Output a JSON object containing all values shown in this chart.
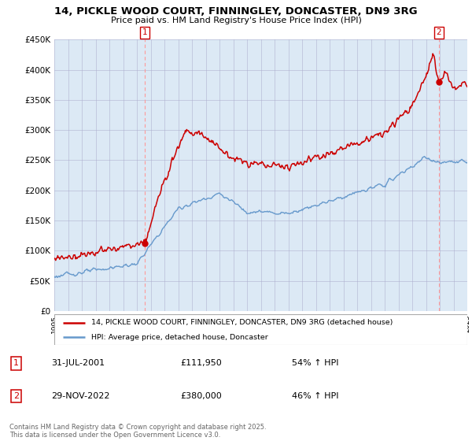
{
  "title": "14, PICKLE WOOD COURT, FINNINGLEY, DONCASTER, DN9 3RG",
  "subtitle": "Price paid vs. HM Land Registry's House Price Index (HPI)",
  "red_label": "14, PICKLE WOOD COURT, FINNINGLEY, DONCASTER, DN9 3RG (detached house)",
  "blue_label": "HPI: Average price, detached house, Doncaster",
  "annotation1_date": "31-JUL-2001",
  "annotation1_price": "£111,950",
  "annotation1_hpi": "54% ↑ HPI",
  "annotation2_date": "29-NOV-2022",
  "annotation2_price": "£380,000",
  "annotation2_hpi": "46% ↑ HPI",
  "footnote": "Contains HM Land Registry data © Crown copyright and database right 2025.\nThis data is licensed under the Open Government Licence v3.0.",
  "ylim": [
    0,
    450000
  ],
  "yticks": [
    0,
    50000,
    100000,
    150000,
    200000,
    250000,
    300000,
    350000,
    400000,
    450000
  ],
  "background_color": "#dce9f5",
  "plot_bg_color": "#dce9f5",
  "outer_bg_color": "#ffffff",
  "grid_color": "#aaaacc",
  "red_color": "#cc0000",
  "blue_color": "#6699cc",
  "marker1_x_year": 2001.58,
  "marker1_y": 111950,
  "marker2_x_year": 2022.92,
  "marker2_y": 380000,
  "xmin": 1995,
  "xmax": 2025
}
